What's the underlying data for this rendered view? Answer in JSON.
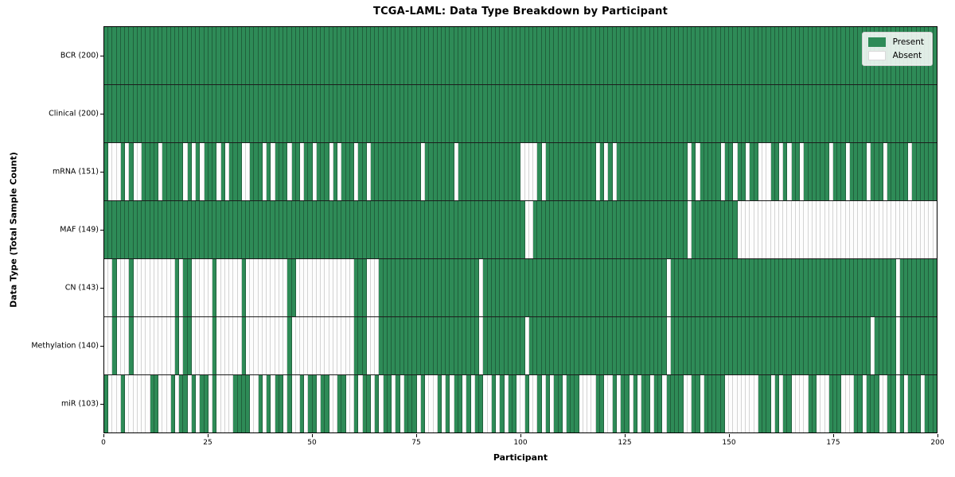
{
  "chart_data": {
    "type": "heatmap",
    "title": "TCGA-LAML: Data Type Breakdown by Participant",
    "xlabel": "Participant",
    "ylabel": "Data Type (Total Sample Count)",
    "x_ticks": [
      0,
      25,
      50,
      75,
      100,
      125,
      150,
      175,
      200
    ],
    "n_participants": 200,
    "x_range": [
      0,
      200
    ],
    "grid": false,
    "legend_position": "upper right",
    "legend": [
      {
        "label": "Present",
        "color": "#2e8b57"
      },
      {
        "label": "Absent",
        "color": "#ffffff"
      }
    ],
    "colors": {
      "present": "#2e8b57",
      "absent": "#ffffff",
      "row_divider": "#1c1c1c"
    },
    "rows": [
      {
        "label": "BCR (200)",
        "present_count": 200,
        "absent": []
      },
      {
        "label": "Clinical (200)",
        "present_count": 200,
        "absent": []
      },
      {
        "label": "mRNA (151)",
        "present_count": 151,
        "absent": [
          1,
          2,
          3,
          5,
          7,
          8,
          13,
          19,
          21,
          23,
          27,
          29,
          33,
          34,
          38,
          40,
          44,
          47,
          50,
          54,
          56,
          60,
          63,
          76,
          84,
          100,
          101,
          102,
          103,
          105,
          118,
          120,
          122,
          140,
          142,
          148,
          151,
          154,
          157,
          158,
          159,
          162,
          164,
          167,
          174,
          178,
          183,
          187,
          193
        ]
      },
      {
        "label": "MAF (149)",
        "present_count": 149,
        "absent": [
          101,
          102,
          140,
          152,
          153,
          154,
          155,
          156,
          157,
          158,
          159,
          160,
          161,
          162,
          163,
          164,
          165,
          166,
          167,
          168,
          169,
          170,
          171,
          172,
          173,
          174,
          175,
          176,
          177,
          178,
          179,
          180,
          181,
          182,
          183,
          184,
          185,
          186,
          187,
          188,
          189,
          190,
          191,
          192,
          193,
          194,
          195,
          196,
          197,
          198,
          199
        ]
      },
      {
        "label": "CN (143)",
        "present_count": 143,
        "absent": [
          0,
          1,
          3,
          4,
          5,
          7,
          8,
          9,
          10,
          11,
          12,
          13,
          14,
          15,
          16,
          18,
          21,
          22,
          23,
          24,
          25,
          27,
          28,
          29,
          30,
          31,
          32,
          34,
          35,
          36,
          37,
          38,
          39,
          40,
          41,
          42,
          43,
          46,
          47,
          48,
          49,
          50,
          51,
          52,
          53,
          54,
          55,
          56,
          57,
          58,
          59,
          63,
          64,
          65,
          90,
          135,
          190
        ]
      },
      {
        "label": "Methylation (140)",
        "present_count": 140,
        "absent": [
          0,
          1,
          3,
          4,
          5,
          7,
          8,
          9,
          10,
          11,
          12,
          13,
          14,
          15,
          16,
          18,
          21,
          22,
          23,
          24,
          25,
          27,
          28,
          29,
          30,
          31,
          32,
          34,
          35,
          36,
          37,
          38,
          39,
          40,
          41,
          42,
          43,
          45,
          46,
          47,
          48,
          49,
          50,
          51,
          52,
          53,
          54,
          55,
          56,
          57,
          58,
          59,
          63,
          64,
          65,
          90,
          101,
          135,
          184,
          190
        ]
      },
      {
        "label": "miR (103)",
        "present_count": 103,
        "absent": [
          1,
          2,
          3,
          5,
          6,
          7,
          8,
          9,
          10,
          13,
          14,
          15,
          17,
          20,
          22,
          25,
          27,
          28,
          29,
          30,
          35,
          36,
          38,
          40,
          43,
          45,
          46,
          48,
          51,
          54,
          55,
          58,
          59,
          61,
          64,
          66,
          69,
          71,
          75,
          77,
          78,
          79,
          81,
          83,
          86,
          88,
          91,
          92,
          94,
          96,
          99,
          100,
          102,
          103,
          105,
          107,
          110,
          114,
          115,
          116,
          117,
          120,
          121,
          123,
          126,
          128,
          131,
          134,
          139,
          140,
          143,
          149,
          150,
          151,
          152,
          153,
          154,
          155,
          156,
          160,
          162,
          165,
          166,
          167,
          168,
          171,
          172,
          173,
          177,
          178,
          179,
          182,
          186,
          187,
          190,
          192,
          196
        ]
      }
    ]
  }
}
